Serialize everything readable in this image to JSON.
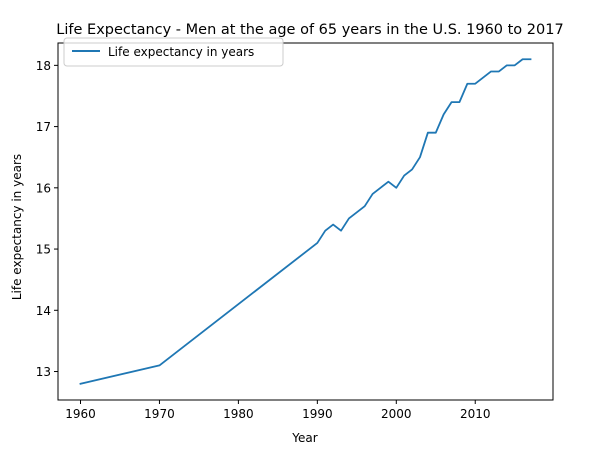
{
  "colors": {
    "line": "#1f77b4",
    "axis": "#000000",
    "legend_border": "#cccccc",
    "background": "#ffffff"
  },
  "chart_data": {
    "type": "line",
    "title": "Life Expectancy - Men at the age of 65 years in the U.S. 1960 to 2017",
    "xlabel": "Year",
    "ylabel": "Life expectancy in years",
    "xlim": [
      1957.15,
      2019.85
    ],
    "ylim": [
      12.535,
      18.365
    ],
    "xticks": [
      1960,
      1970,
      1980,
      1990,
      2000,
      2010
    ],
    "yticks": [
      13,
      14,
      15,
      16,
      17,
      18
    ],
    "grid": false,
    "legend_position": "upper-left",
    "series": [
      {
        "name": "Life expectancy in years",
        "x": [
          1960,
          1970,
          1990,
          1991,
          1992,
          1993,
          1994,
          1995,
          1996,
          1997,
          1998,
          1999,
          2000,
          2001,
          2002,
          2003,
          2004,
          2005,
          2006,
          2007,
          2008,
          2009,
          2010,
          2011,
          2012,
          2013,
          2014,
          2015,
          2016,
          2017
        ],
        "y": [
          12.8,
          13.1,
          15.1,
          15.3,
          15.4,
          15.3,
          15.5,
          15.6,
          15.7,
          15.9,
          16.0,
          16.1,
          16.0,
          16.2,
          16.3,
          16.5,
          16.9,
          16.9,
          17.2,
          17.4,
          17.4,
          17.7,
          17.7,
          17.8,
          17.9,
          17.9,
          18.0,
          18.0,
          18.1,
          18.1
        ]
      }
    ]
  }
}
